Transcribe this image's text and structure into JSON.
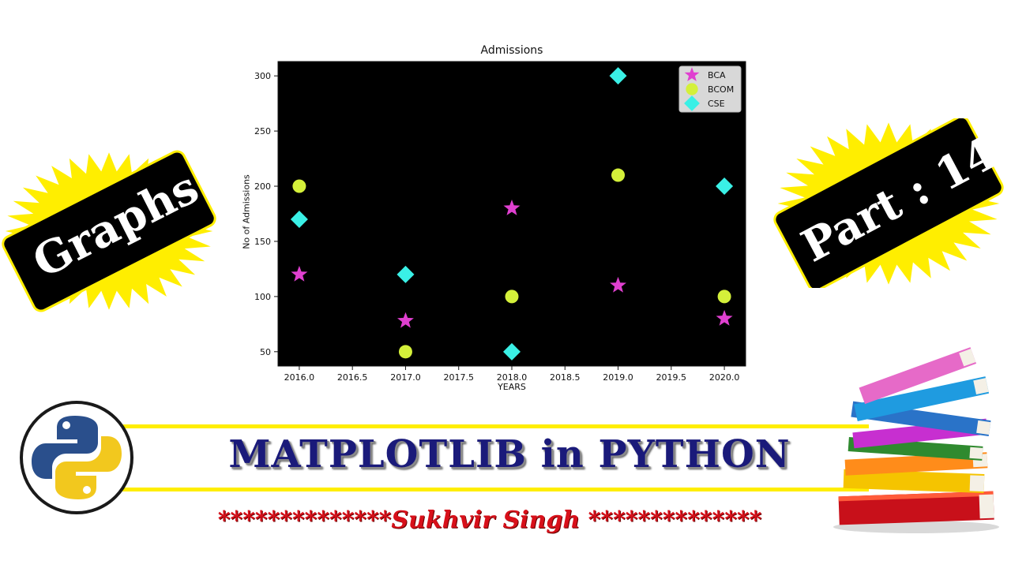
{
  "left_badge": {
    "label": "Graphs"
  },
  "right_badge": {
    "label": "Part : 14"
  },
  "banner": {
    "title": "MATPLOTLIB in PYTHON",
    "author": "**************Sukhvir Singh **************"
  },
  "icons": {
    "logo": "python-logo",
    "books": "stacked-books"
  },
  "colors": {
    "plot_bg": "#000000",
    "bca": "#e040d0",
    "bcom": "#d4f03a",
    "cse": "#3af0e6",
    "badge_fill": "#000000",
    "burst": "#ffee00",
    "banner_line": "#ffee00"
  },
  "chart_data": {
    "type": "scatter",
    "title": "Admissions",
    "xlabel": "YEARS",
    "ylabel": "No of Admissions",
    "xlim": [
      2015.8,
      2020.2
    ],
    "ylim": [
      37,
      313
    ],
    "xticks": [
      "2016.0",
      "2016.5",
      "2017.0",
      "2017.5",
      "2018.0",
      "2018.5",
      "2019.0",
      "2019.5",
      "2020.0"
    ],
    "yticks": [
      "50",
      "100",
      "150",
      "200",
      "250",
      "300"
    ],
    "legend_position": "top-right",
    "background": "black",
    "series": [
      {
        "name": "BCA",
        "marker": "star",
        "color": "#e040d0",
        "x": [
          2016,
          2017,
          2018,
          2019,
          2020
        ],
        "y": [
          120,
          78,
          180,
          110,
          80
        ]
      },
      {
        "name": "BCOM",
        "marker": "circle",
        "color": "#d4f03a",
        "x": [
          2016,
          2017,
          2018,
          2019,
          2020
        ],
        "y": [
          200,
          50,
          100,
          210,
          100
        ]
      },
      {
        "name": "CSE",
        "marker": "diamond",
        "color": "#3af0e6",
        "x": [
          2016,
          2017,
          2018,
          2019,
          2020
        ],
        "y": [
          170,
          120,
          50,
          300,
          200
        ]
      }
    ]
  }
}
